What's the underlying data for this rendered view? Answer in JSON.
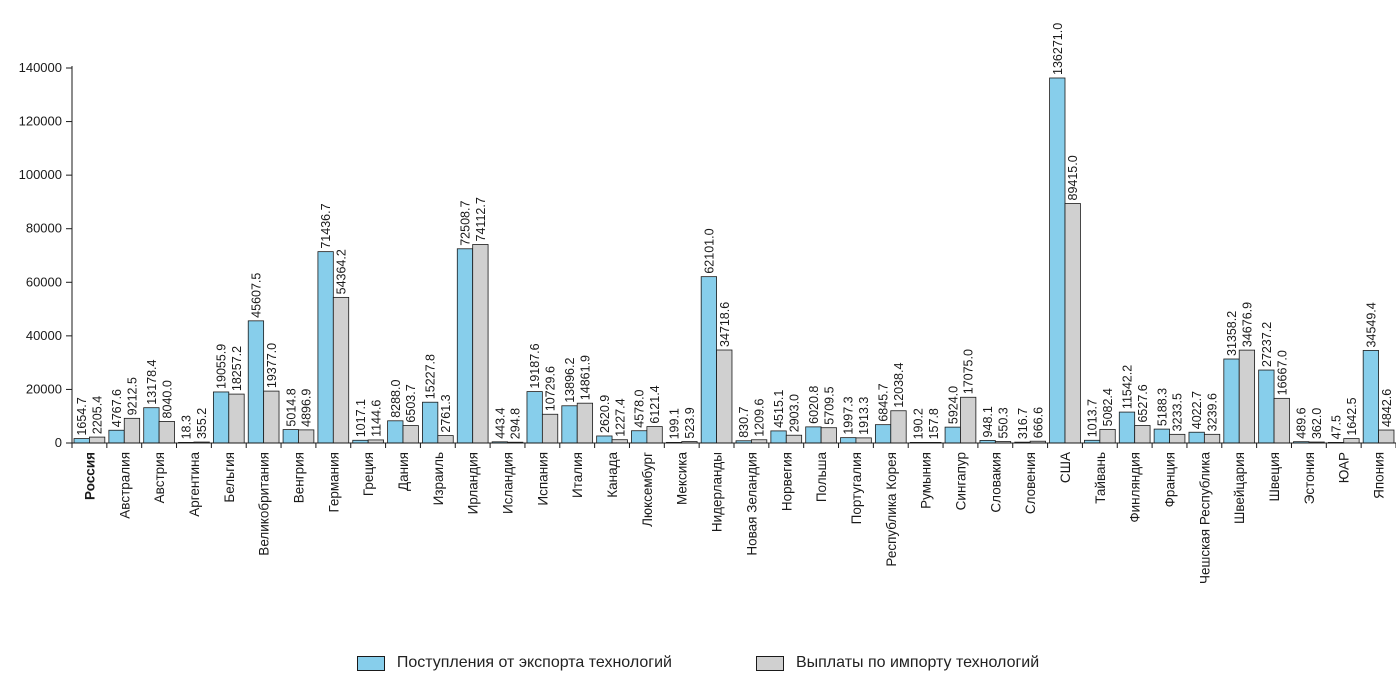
{
  "chart_data": {
    "type": "bar",
    "ylim": [
      0,
      140000
    ],
    "yticks": [
      0,
      20000,
      40000,
      60000,
      80000,
      100000,
      120000,
      140000
    ],
    "categories": [
      "Россия",
      "Австралия",
      "Австрия",
      "Аргентина",
      "Бельгия",
      "Великобритания",
      "Венгрия",
      "Германия",
      "Греция",
      "Дания",
      "Израиль",
      "Ирландия",
      "Исландия",
      "Испания",
      "Италия",
      "Канада",
      "Люксембург",
      "Мексика",
      "Нидерланды",
      "Новая Зеландия",
      "Норвегия",
      "Польша",
      "Португалия",
      "Республика Корея",
      "Румыния",
      "Сингапур",
      "Словакия",
      "Словения",
      "США",
      "Тайвань",
      "Финляндия",
      "Франция",
      "Чешская Республика",
      "Швейцария",
      "Швеция",
      "Эстония",
      "ЮАР",
      "Япония"
    ],
    "highlight_category": "Россия",
    "series": [
      {
        "name": "Поступления от экспорта технологий",
        "color": "#87CEEB",
        "values": [
          1654.7,
          4767.6,
          13178.4,
          18.3,
          19055.9,
          45607.5,
          5014.8,
          71436.7,
          1017.1,
          8288.0,
          15227.8,
          72508.7,
          443.4,
          19187.6,
          13896.2,
          2620.9,
          4578.0,
          199.1,
          62101.0,
          830.7,
          4515.1,
          6020.8,
          1997.3,
          6845.7,
          190.2,
          5924.0,
          948.1,
          316.7,
          136271.0,
          1013.7,
          11542.2,
          5188.3,
          4022.7,
          31358.2,
          27237.2,
          489.6,
          47.5,
          34549.4
        ],
        "labels": [
          "1654.7",
          "4767.6",
          "13178.4",
          "18.3",
          "19055.9",
          "45607.5",
          "5014.8",
          "71436.7",
          "1017.1",
          "8288.0",
          "15227.8",
          "72508.7",
          "443.4",
          "19187.6",
          "13896.2",
          "2620.9",
          "4578.0",
          "199.1",
          "62101.0",
          "830.7",
          "4515.1",
          "6020.8",
          "1997.3",
          "6845.7",
          "190.2",
          "5924.0",
          "948.1",
          "316.7",
          "136271.0",
          "1013.7",
          "11542.2",
          "5188.3",
          "4022.7",
          "31358.2",
          "27237.2",
          "489.6",
          "47.5",
          "34549.4"
        ]
      },
      {
        "name": "Выплаты по импорту технологий",
        "color": "#D0D0D0",
        "values": [
          2205.4,
          9212.5,
          8040.0,
          355.2,
          18257.2,
          19377.0,
          4896.9,
          54364.2,
          1144.6,
          6503.7,
          2761.3,
          74112.7,
          294.8,
          10729.6,
          14861.9,
          1227.4,
          6121.4,
          523.9,
          34718.6,
          1209.6,
          2903.0,
          5709.5,
          1913.3,
          12038.4,
          157.8,
          17075.0,
          550.3,
          666.6,
          89415.0,
          5082.4,
          6527.6,
          3233.5,
          3239.6,
          34676.9,
          16667.0,
          362.0,
          1642.5,
          4842.6
        ],
        "labels": [
          "2205.4",
          "9212.5",
          "8040.0",
          "355.2",
          "18257.2",
          "19377.0",
          "4896.9",
          "54364.2",
          "1144.6",
          "6503.7",
          "2761.3",
          "74112.7",
          "294.8",
          "10729.6",
          "14861.9",
          "1227.4",
          "6121.4",
          "523.9",
          "34718.6",
          "1209.6",
          "2903.0",
          "5709.5",
          "1913.3",
          "12038.4",
          "157.8",
          "17075.0",
          "550.3",
          "666.6",
          "89415.0",
          "5082.4",
          "6527.6",
          "3233.5",
          "3239.6",
          "34676.9",
          "16667.0",
          "362.0",
          "1642.5",
          "4842.6"
        ]
      }
    ]
  }
}
